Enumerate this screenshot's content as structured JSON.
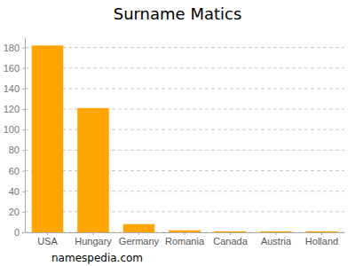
{
  "chart_data": {
    "type": "bar",
    "title": "Surname Matics",
    "categories": [
      "USA",
      "Hungary",
      "Germany",
      "Romania",
      "Canada",
      "Austria",
      "Holland"
    ],
    "values": [
      182,
      121,
      8,
      2,
      1,
      1,
      1
    ],
    "color": "#ffa500",
    "ylim": [
      0,
      190
    ],
    "yticks": [
      0,
      20,
      40,
      60,
      80,
      100,
      120,
      140,
      160,
      180
    ],
    "grid": true,
    "annotations": [
      "namespedia.com"
    ]
  }
}
